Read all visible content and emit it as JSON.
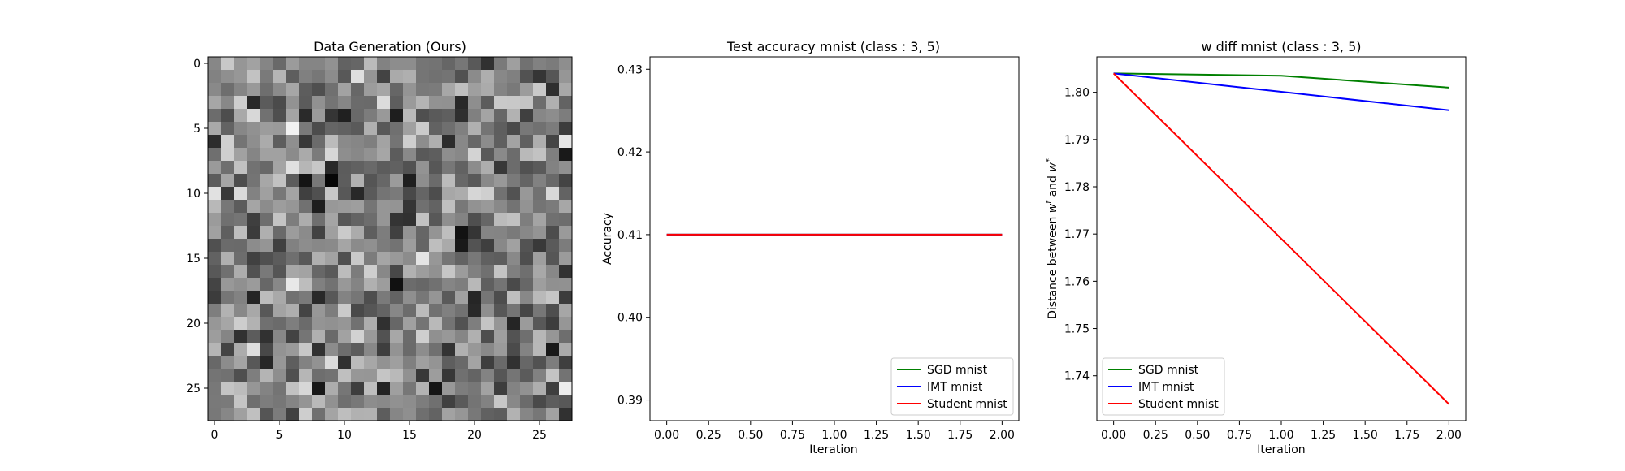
{
  "chart_data": [
    {
      "type": "heatmap",
      "title": "Data Generation (Ours)",
      "rows": 28,
      "cols": 28,
      "colormap": "gray",
      "xticks": [
        0,
        5,
        10,
        15,
        20,
        25
      ],
      "yticks": [
        0,
        5,
        10,
        15,
        20,
        25
      ],
      "xlim": [
        -0.5,
        27.5
      ],
      "ylim": [
        27.5,
        -0.5
      ],
      "description_of_values": "random grayscale noise image, intensities in [0,1]",
      "values": []
    },
    {
      "type": "line",
      "title": "Test accuracy mnist (class : 3, 5)",
      "xlabel": "Iteration",
      "ylabel": "Accuracy",
      "xlim": [
        -0.1,
        2.1
      ],
      "ylim": [
        0.3875,
        0.4315
      ],
      "xticks": [
        "0.00",
        "0.25",
        "0.50",
        "0.75",
        "1.00",
        "1.25",
        "1.50",
        "1.75",
        "2.00"
      ],
      "yticks": [
        "0.39",
        "0.40",
        "0.41",
        "0.42",
        "0.43"
      ],
      "legend_position": "lower-right",
      "legend": [
        "SGD mnist",
        "IMT mnist",
        "Student mnist"
      ],
      "x": [
        0,
        1,
        2
      ],
      "series": [
        {
          "name": "SGD mnist",
          "color": "#008000",
          "values": [
            0.41,
            0.41,
            0.41
          ]
        },
        {
          "name": "IMT mnist",
          "color": "#0000ff",
          "values": [
            0.41,
            0.41,
            0.41
          ]
        },
        {
          "name": "Student mnist",
          "color": "#ff0000",
          "values": [
            0.41,
            0.41,
            0.41
          ]
        }
      ]
    },
    {
      "type": "line",
      "title": "w diff mnist (class : 3, 5)",
      "xlabel": "Iteration",
      "ylabel": "Distance between w^t and w^*",
      "xlim": [
        -0.1,
        2.1
      ],
      "ylim": [
        1.7305,
        1.8075
      ],
      "xticks": [
        "0.00",
        "0.25",
        "0.50",
        "0.75",
        "1.00",
        "1.25",
        "1.50",
        "1.75",
        "2.00"
      ],
      "yticks": [
        "1.74",
        "1.75",
        "1.76",
        "1.77",
        "1.78",
        "1.79",
        "1.80"
      ],
      "legend_position": "lower-left",
      "legend": [
        "SGD mnist",
        "IMT mnist",
        "Student mnist"
      ],
      "x": [
        0,
        1,
        2
      ],
      "series": [
        {
          "name": "SGD mnist",
          "color": "#008000",
          "values": [
            1.804,
            1.8035,
            1.801
          ]
        },
        {
          "name": "IMT mnist",
          "color": "#0000ff",
          "values": [
            1.804,
            1.8001,
            1.7962
          ]
        },
        {
          "name": "Student mnist",
          "color": "#ff0000",
          "values": [
            1.804,
            1.769,
            1.734
          ]
        }
      ]
    }
  ]
}
